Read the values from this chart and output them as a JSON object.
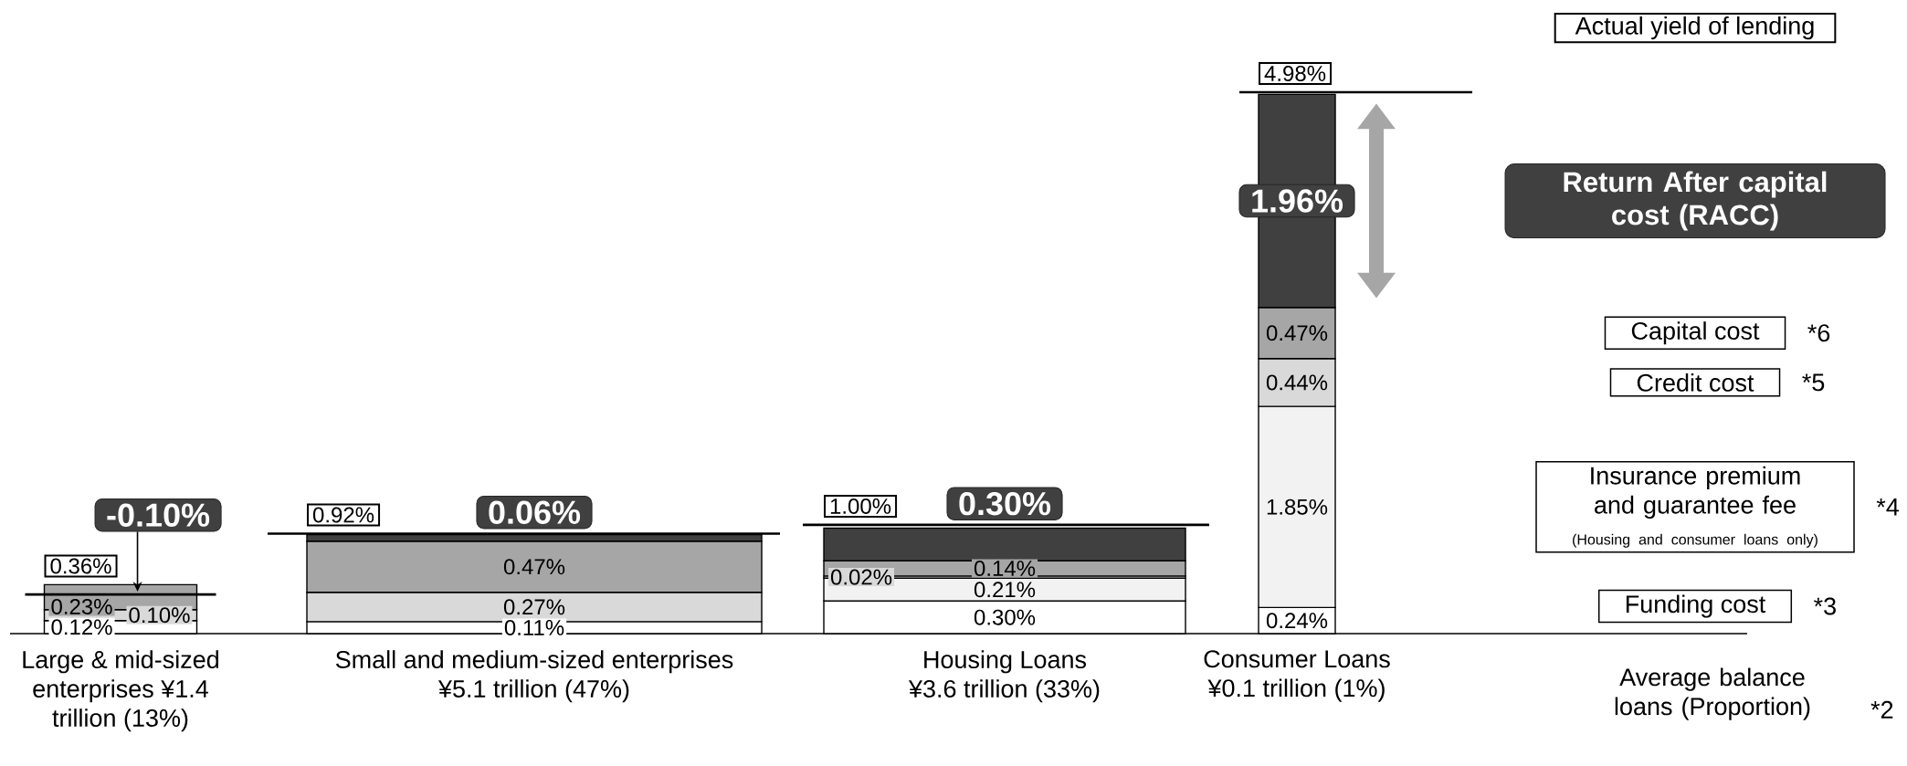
{
  "chart_data": {
    "type": "bar",
    "stacked": true,
    "categories": [
      "Large & mid-sized enterprises ¥1.4 trillion (13%)",
      "Small and medium-sized enterprises ¥5.1 trillion (47%)",
      "Housing Loans ¥3.6 trillion (33%)",
      "Consumer Loans ¥0.1 trillion (1%)"
    ],
    "xlabel": "Average balance loans (Proportion)",
    "series": [
      {
        "name": "Funding cost",
        "color": "#ffffff",
        "values": [
          0.12,
          0.11,
          0.3,
          0.24
        ],
        "value_labels": [
          "0.12%",
          "0.11%",
          "0.30%",
          "0.24%"
        ]
      },
      {
        "name": "Insurance premium and guarantee fee",
        "color": "#f2f2f2",
        "values": [
          null,
          null,
          0.21,
          1.85
        ],
        "value_labels": [
          null,
          null,
          "0.21%",
          "1.85%"
        ]
      },
      {
        "name": "Credit cost",
        "color": "#d9d9d9",
        "values": [
          0.1,
          0.27,
          0.02,
          0.44
        ],
        "value_labels": [
          "0.10%",
          "0.27%",
          "0.02%",
          "0.44%"
        ]
      },
      {
        "name": "Capital cost",
        "color": "#a6a6a6",
        "values": [
          0.23,
          0.47,
          0.14,
          0.47
        ],
        "value_labels": [
          "0.23%",
          "0.47%",
          "0.14%",
          "0.47%"
        ]
      },
      {
        "name": "Return After capital cost (RACC)",
        "color": "#404040",
        "values": [
          null,
          0.06,
          0.3,
          1.96
        ],
        "value_labels": [
          null,
          "0.06%",
          "0.30%",
          "1.96%"
        ]
      }
    ],
    "ref_lines": [
      {
        "axis": "y",
        "value": 0.36,
        "label": "0.36%",
        "color": "#000000"
      },
      {
        "axis": "y",
        "value": 0.92,
        "label": "0.92%",
        "color": "#000000"
      },
      {
        "axis": "y",
        "value": 1.0,
        "label": "1.00%",
        "color": "#000000"
      },
      {
        "axis": "y",
        "value": 4.98,
        "label": "4.98%",
        "color": "#000000"
      }
    ],
    "legend": "right",
    "annotations": [
      "Actual yield of lending",
      "-0.10%",
      "(Housing and consumer loans only)",
      "*6",
      "*5",
      "*4",
      "*3",
      "*2"
    ]
  }
}
